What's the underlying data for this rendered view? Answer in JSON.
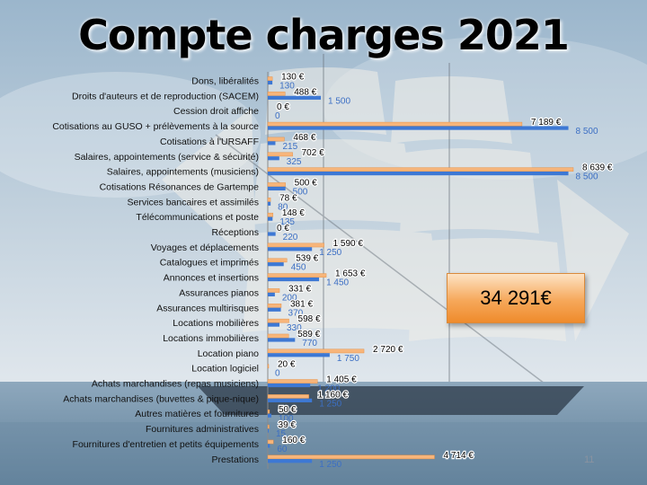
{
  "title": "Compte charges 2021",
  "total": "34 291€",
  "page_number": "11",
  "colors": {
    "bar_2021": "#f7b57a",
    "bar_compare": "#3d78d4",
    "compare_label": "#3c6fc4"
  },
  "chart_data": {
    "type": "bar",
    "orientation": "horizontal",
    "categories": [
      "Dons, libéralités",
      "Droits d'auteurs et de reproduction (SACEM)",
      "Cession droit affiche",
      "Cotisations au GUSO + prélèvements à la source",
      "Cotisations à l'URSAFF",
      "Salaires, appointements (service & sécurité)",
      "Salaires, appointements (musiciens)",
      "Cotisations Résonances de Gartempe",
      "Services bancaires et assimilés",
      "Télécommunications et poste",
      "Réceptions",
      "Voyages et déplacements",
      "Catalogues et imprimés",
      "Annonces et insertions",
      "Assurances pianos",
      "Assurances multirisques",
      "Locations mobilières",
      "Locations immobilières",
      "Location piano",
      "Location logiciel",
      "Achats marchandises (repas musiciens)",
      "Achats marchandises (buvettes & pique-nique)",
      "Autres matières et fournitures",
      "Fournitures administratives",
      "Fournitures d'entretien et petits équipements",
      "Prestations"
    ],
    "series": [
      {
        "values": [
          130,
          488,
          0,
          7189,
          468,
          702,
          8639,
          500,
          78,
          148,
          0,
          1590,
          539,
          1653,
          331,
          381,
          598,
          589,
          2720,
          20,
          1405,
          1160,
          50,
          39,
          160,
          4714
        ],
        "labels": [
          "130 €",
          "488 €",
          "0 €",
          "7 189 €",
          "468 €",
          "702 €",
          "8 639 €",
          "500 €",
          "78 €",
          "148 €",
          "0 €",
          "1 590 €",
          "539 €",
          "1 653 €",
          "331 €",
          "381 €",
          "598 €",
          "589 €",
          "2 720 €",
          "20 €",
          "1 405 €",
          "1 160 €",
          "50 €",
          "39 €",
          "160 €",
          "4 714 €"
        ]
      },
      {
        "values": [
          130,
          1500,
          0,
          8500,
          215,
          325,
          8500,
          500,
          80,
          135,
          220,
          1250,
          450,
          1450,
          200,
          370,
          330,
          770,
          1750,
          0,
          1200,
          1250,
          100,
          15,
          60,
          1250
        ],
        "labels": [
          "130",
          "1 500",
          "0",
          "8 500",
          "215",
          "325",
          "8 500",
          "500",
          "80",
          "135",
          "220",
          "1 250",
          "450",
          "1 450",
          "200",
          "370",
          "330",
          "770",
          "1 750",
          "0",
          "1 200",
          "1 250",
          "100",
          "15",
          "60",
          "1 250"
        ]
      }
    ]
  }
}
